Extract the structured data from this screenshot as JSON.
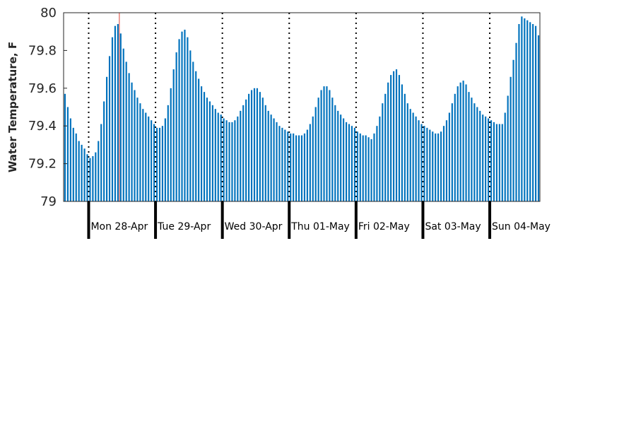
{
  "chart_data": {
    "type": "bar",
    "ylabel": "Water Temperature, F",
    "ylim": [
      79,
      80
    ],
    "yticks": [
      79,
      79.2,
      79.4,
      79.6,
      79.8,
      80
    ],
    "ytick_labels": [
      "79",
      "79.2",
      "79.4",
      "79.6",
      "79.8",
      "80"
    ],
    "day_labels": [
      "Mon 28-Apr",
      "Tue 29-Apr",
      "Wed 30-Apr",
      "Thu 01-May",
      "Fri 02-May",
      "Sat 03-May",
      "Sun 04-May"
    ],
    "x_start": "2025-04-27 15:00",
    "interval_hours": 1,
    "grid": "dotted vertical lines at midnight",
    "bar_color": "#0072BD",
    "marker_color": "#E8827A",
    "current_time_marker": "2025-04-28 11:00",
    "values": [
      79.57,
      79.5,
      79.44,
      79.39,
      79.36,
      79.32,
      79.3,
      79.28,
      79.25,
      79.23,
      79.24,
      79.26,
      79.32,
      79.41,
      79.53,
      79.66,
      79.77,
      79.87,
      79.93,
      79.94,
      79.89,
      79.81,
      79.74,
      79.68,
      79.63,
      79.59,
      79.55,
      79.52,
      79.49,
      79.47,
      79.45,
      79.43,
      79.41,
      79.39,
      79.39,
      79.4,
      79.44,
      79.51,
      79.6,
      79.7,
      79.79,
      79.86,
      79.9,
      79.91,
      79.87,
      79.8,
      79.74,
      79.69,
      79.65,
      79.61,
      79.58,
      79.55,
      79.53,
      79.51,
      79.49,
      79.47,
      79.46,
      79.44,
      79.43,
      79.42,
      79.42,
      79.43,
      79.45,
      79.48,
      79.51,
      79.54,
      79.57,
      79.59,
      79.6,
      79.6,
      79.58,
      79.55,
      79.51,
      79.48,
      79.46,
      79.44,
      79.42,
      79.4,
      79.39,
      79.38,
      79.37,
      79.36,
      79.36,
      79.35,
      79.35,
      79.35,
      79.36,
      79.38,
      79.41,
      79.45,
      79.5,
      79.55,
      79.59,
      79.61,
      79.61,
      79.59,
      79.55,
      79.51,
      79.48,
      79.46,
      79.44,
      79.42,
      79.41,
      79.4,
      79.39,
      79.37,
      79.36,
      79.35,
      79.35,
      79.34,
      79.33,
      79.36,
      79.4,
      79.45,
      79.52,
      79.57,
      79.63,
      79.67,
      79.69,
      79.7,
      79.67,
      79.62,
      79.57,
      79.52,
      79.49,
      79.47,
      79.45,
      79.43,
      79.41,
      79.4,
      79.39,
      79.38,
      79.37,
      79.36,
      79.36,
      79.37,
      79.4,
      79.43,
      79.47,
      79.52,
      79.57,
      79.61,
      79.63,
      79.64,
      79.62,
      79.58,
      79.55,
      79.52,
      79.5,
      79.48,
      79.46,
      79.45,
      79.44,
      79.43,
      79.42,
      79.41,
      79.41,
      79.41,
      79.47,
      79.56,
      79.66,
      79.75,
      79.84,
      79.94,
      79.98,
      79.97,
      79.96,
      79.95,
      79.94,
      79.93,
      79.88
    ]
  }
}
